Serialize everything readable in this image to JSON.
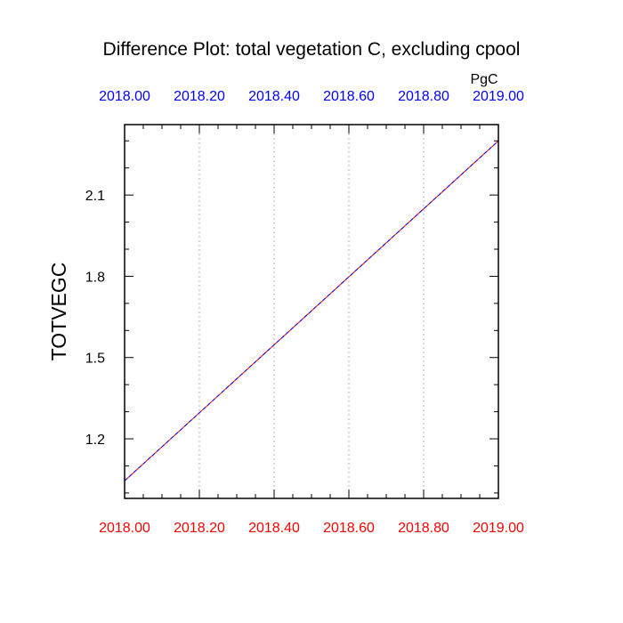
{
  "chart_data": {
    "type": "line",
    "title": "Difference Plot: total vegetation C, excluding cpool",
    "ylabel": "TOTVEGC",
    "units": "PgC",
    "xlim": [
      2018.0,
      2019.0
    ],
    "ylim": [
      0.98,
      2.36
    ],
    "x_ticks": [
      "2018.00",
      "2018.20",
      "2018.40",
      "2018.60",
      "2018.80",
      "2019.00"
    ],
    "y_ticks": [
      {
        "value": 1.2,
        "label": "1.2"
      },
      {
        "value": 1.5,
        "label": "1.5"
      },
      {
        "value": 1.8,
        "label": "1.8"
      },
      {
        "value": 2.1,
        "label": "2.1"
      }
    ],
    "grid": "vertical dotted",
    "colors": {
      "bottom_axis_labels": "#ff0000",
      "top_axis_labels": "#0000ff",
      "series_a": "#ff0000",
      "series_b": "#0000ff"
    },
    "series": [
      {
        "color": "#ff0000",
        "dash": "solid",
        "x": [
          2018.0,
          2019.0
        ],
        "y": [
          1.045,
          2.3
        ]
      },
      {
        "color": "#0000ff",
        "dash": "dashed",
        "x": [
          2018.0,
          2019.0
        ],
        "y": [
          1.045,
          2.3
        ]
      }
    ]
  }
}
